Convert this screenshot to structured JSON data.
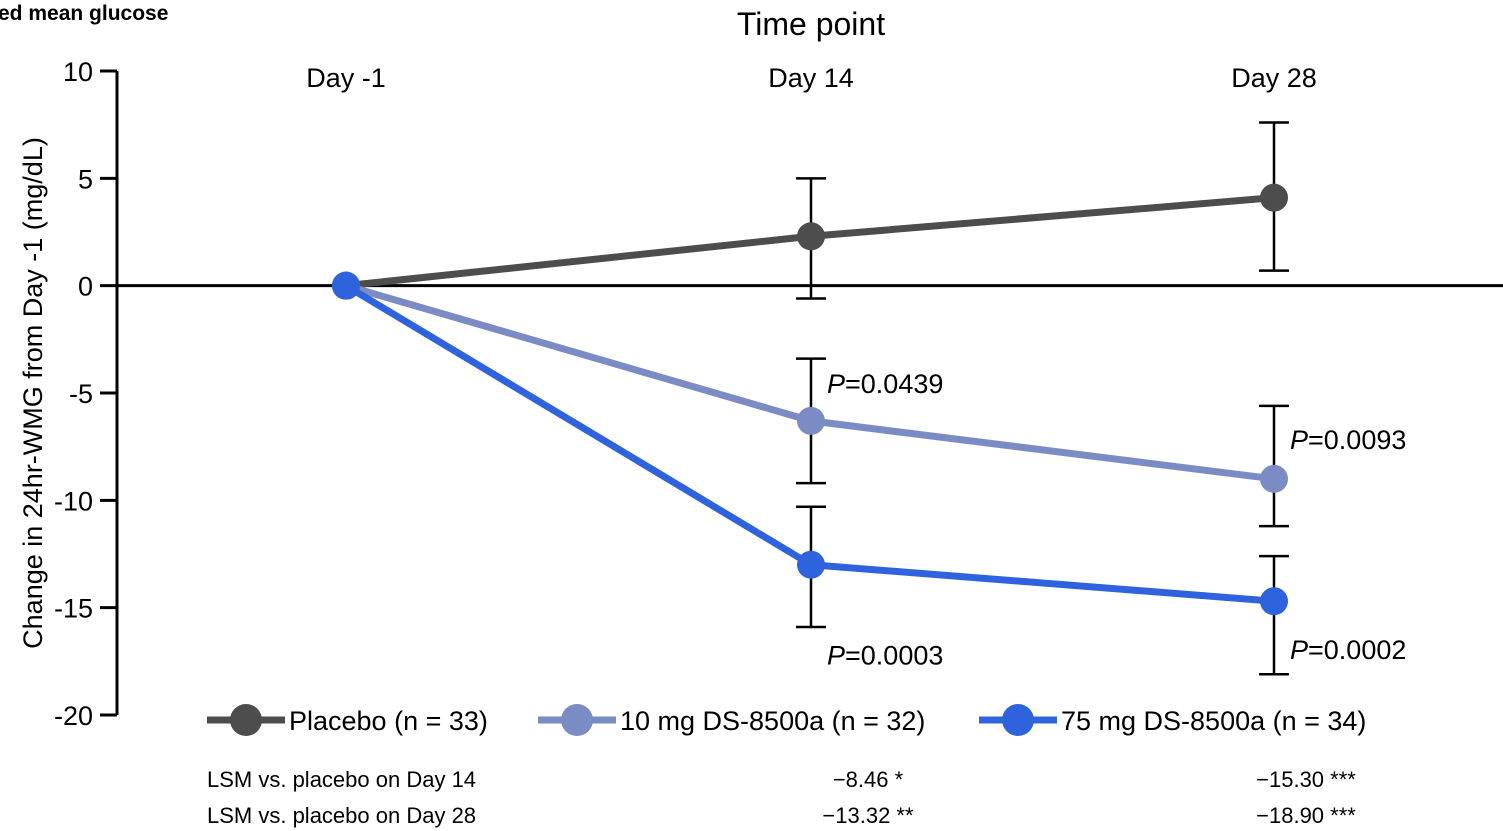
{
  "chart_data": {
    "type": "line",
    "title_fragment": "ed mean glucose",
    "x_axis_title": "Time point",
    "ylabel": "Change in 24hr-WMG from Day -1 (mg/dL)",
    "categories": [
      "Day -1",
      "Day 14",
      "Day 28"
    ],
    "ylim": [
      -20,
      10
    ],
    "yticks": [
      10,
      5,
      0,
      -5,
      -10,
      -15,
      -20
    ],
    "ytick_labels": [
      "10",
      "5",
      "0",
      "-5",
      "-10",
      "-15",
      "-20"
    ],
    "series": [
      {
        "name": "Placebo (n = 33)",
        "color": "#4d4d4d",
        "values": [
          0,
          2.3,
          4.1
        ],
        "err_low": [
          null,
          -0.6,
          0.7
        ],
        "err_high": [
          null,
          5.0,
          7.6
        ],
        "annotations": [
          null,
          null,
          null
        ]
      },
      {
        "name": "10 mg DS-8500a (n = 32)",
        "color": "#7b8cc4",
        "values": [
          0,
          -6.3,
          -9.0
        ],
        "err_low": [
          null,
          -9.2,
          -11.2
        ],
        "err_high": [
          null,
          -3.4,
          -5.6
        ],
        "annotations": [
          null,
          "0.0439",
          "0.0093"
        ]
      },
      {
        "name": "75 mg DS-8500a (n = 34)",
        "color": "#2f63dd",
        "values": [
          0,
          -13.0,
          -14.7
        ],
        "err_low": [
          null,
          -15.9,
          -18.1
        ],
        "err_high": [
          null,
          -10.3,
          -12.6
        ],
        "annotations": [
          null,
          "0.0003",
          "0.0002"
        ]
      }
    ],
    "annotation_prefix": "P",
    "annotation_sep": "=",
    "lsm_rows": [
      {
        "label": "LSM vs. placebo on Day 14",
        "values": [
          "−8.46 *",
          "−15.30 ***"
        ]
      },
      {
        "label": "LSM vs. placebo on Day 28",
        "values": [
          "−13.32 **",
          "−18.90 ***"
        ]
      }
    ],
    "legend_position": "bottom",
    "grid": false
  }
}
